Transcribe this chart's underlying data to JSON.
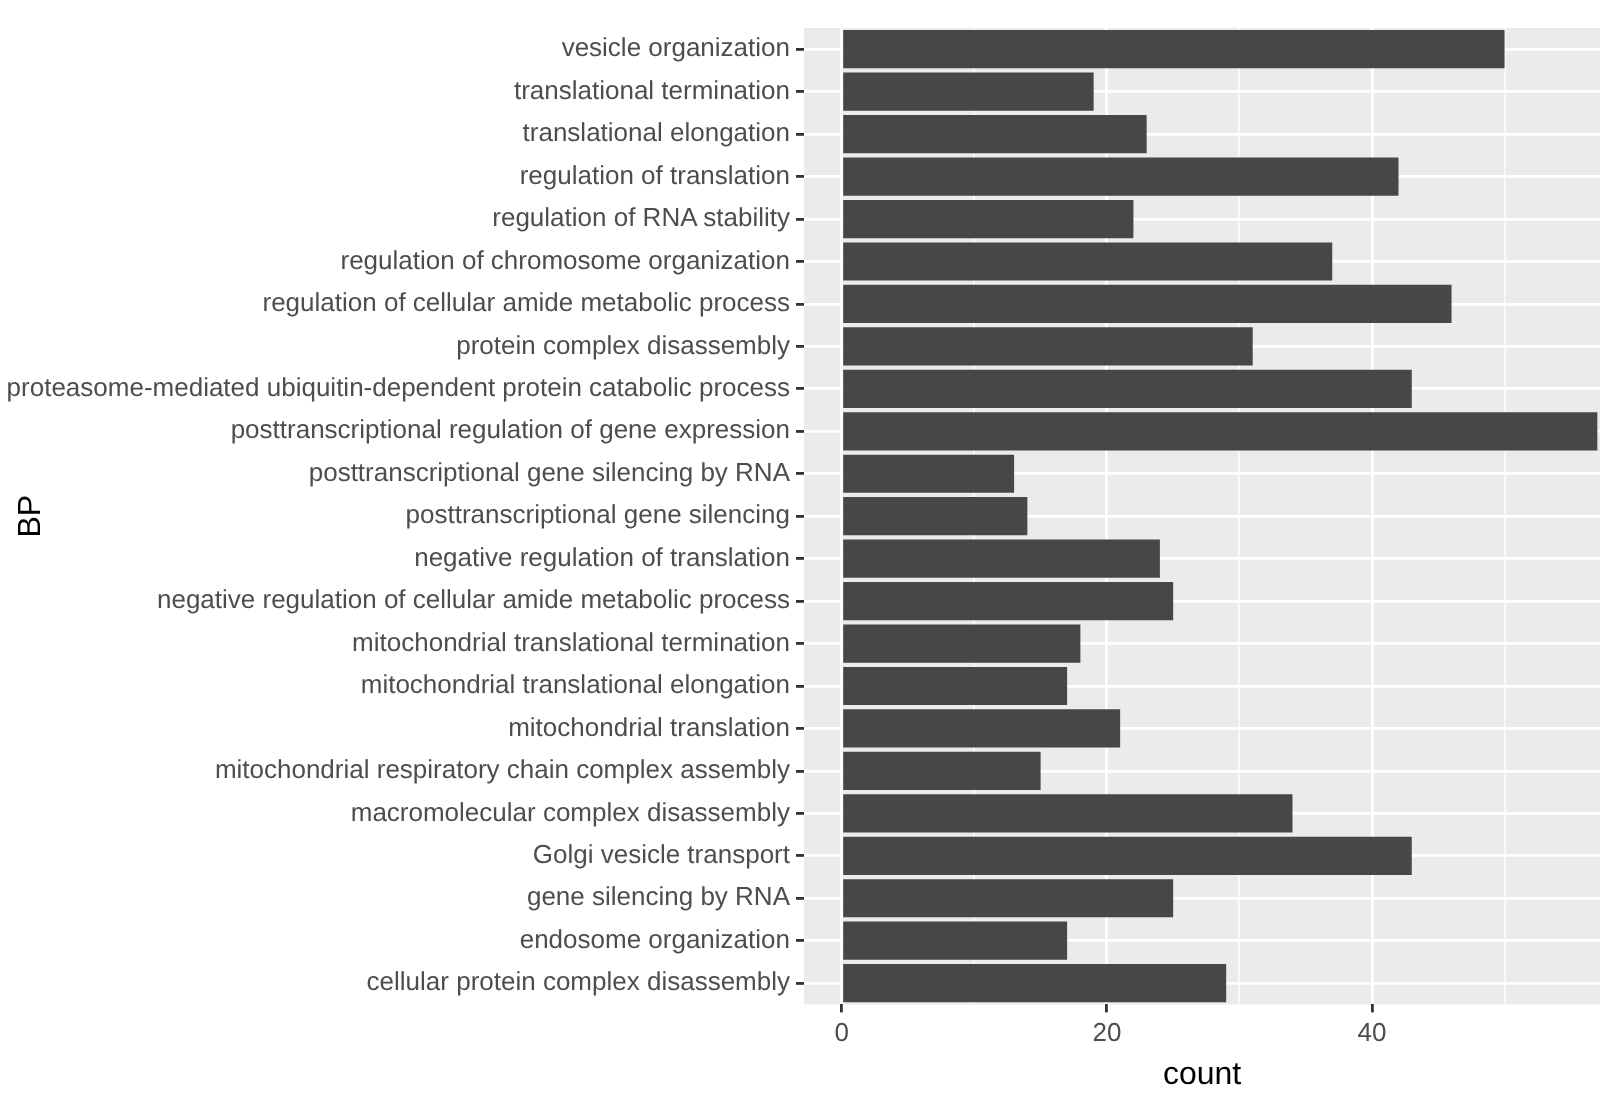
{
  "chart_data": {
    "type": "bar",
    "orientation": "horizontal",
    "xlabel": "count",
    "ylabel": "BP",
    "categories": [
      "vesicle organization",
      "translational termination",
      "translational elongation",
      "regulation of translation",
      "regulation of RNA stability",
      "regulation of chromosome organization",
      "regulation of cellular amide metabolic process",
      "protein complex disassembly",
      "proteasome-mediated ubiquitin-dependent protein catabolic process",
      "posttranscriptional regulation of gene expression",
      "posttranscriptional gene silencing by RNA",
      "posttranscriptional gene silencing",
      "negative regulation of translation",
      "negative regulation of cellular amide metabolic process",
      "mitochondrial translational termination",
      "mitochondrial translational elongation",
      "mitochondrial translation",
      "mitochondrial respiratory chain complex assembly",
      "macromolecular complex disassembly",
      "Golgi vesicle transport",
      "gene silencing by RNA",
      "endosome organization",
      "cellular protein complex disassembly"
    ],
    "values": [
      50,
      19,
      23,
      42,
      22,
      37,
      46,
      31,
      43,
      57,
      13,
      14,
      24,
      25,
      18,
      17,
      21,
      15,
      34,
      43,
      25,
      17,
      29
    ],
    "color": "#474747",
    "xlim": [
      -2.85,
      57.2
    ],
    "xticks": [
      0,
      {
        "value": 10,
        "label": null
      },
      20,
      {
        "value": 30,
        "label": null
      },
      40,
      {
        "value": 50,
        "label": null
      }
    ],
    "grid": true
  }
}
